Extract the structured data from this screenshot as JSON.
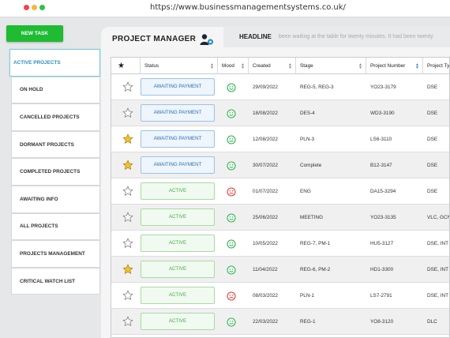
{
  "browser": {
    "url": "https://www.businessmanagementsystems.co.uk/"
  },
  "colors": {
    "close": "#f0454c",
    "minimize": "#f4b73c",
    "maximize": "#2fc24c",
    "accent": "#1fbb33"
  },
  "toolbar": {
    "new_task_label": "NEW TASK"
  },
  "sidebar": {
    "items": [
      {
        "label": "ACTIVE PROJECTS",
        "active": true
      },
      {
        "label": "ON HOLD"
      },
      {
        "label": "CANCELLED PROJECTS"
      },
      {
        "label": "DORMANT PROJECTS"
      },
      {
        "label": "COMPLETED PROJECTS"
      },
      {
        "label": "AWAITING INFO"
      },
      {
        "label": "ALL PROJECTS"
      },
      {
        "label": "PROJECTS MANAGEMENT"
      },
      {
        "label": "CRITICAL WATCH LIST"
      }
    ]
  },
  "panel": {
    "title": "PROJECT MANAGER",
    "user_icon": "user-gear-icon"
  },
  "headline": {
    "label": "HEADLINE",
    "ticker": "been waiting at the table for twenty minutes. It had been twenty"
  },
  "table": {
    "columns": [
      {
        "key": "star",
        "label": "★"
      },
      {
        "key": "status",
        "label": "Status"
      },
      {
        "key": "mood",
        "label": "Mood"
      },
      {
        "key": "created",
        "label": "Created"
      },
      {
        "key": "stage",
        "label": "Stage"
      },
      {
        "key": "number",
        "label": "Project Number"
      },
      {
        "key": "type",
        "label": "Project Ty"
      }
    ],
    "rows": [
      {
        "starred": false,
        "status": "AWAITING PAYMENT",
        "mood": "happy",
        "created": "29/09/2022",
        "stage": "REG-5, REG-3",
        "number": "YO23-3179",
        "type": "DSE"
      },
      {
        "starred": false,
        "status": "AWAITING PAYMENT",
        "mood": "happy",
        "created": "18/08/2022",
        "stage": "DES-4",
        "number": "WD3-3190",
        "type": "DSE"
      },
      {
        "starred": true,
        "status": "AWAITING PAYMENT",
        "mood": "happy",
        "created": "12/08/2022",
        "stage": "PLN-3",
        "number": "LS6-3110",
        "type": "DSE"
      },
      {
        "starred": true,
        "status": "AWAITING PAYMENT",
        "mood": "happy",
        "created": "30/07/2022",
        "stage": "Complete",
        "number": "B12-3147",
        "type": "DSE"
      },
      {
        "starred": false,
        "status": "ACTIVE",
        "mood": "sad",
        "created": "01/07/2022",
        "stage": "ENG",
        "number": "DA15-3294",
        "type": "DSE"
      },
      {
        "starred": false,
        "status": "ACTIVE",
        "mood": "happy",
        "created": "25/06/2022",
        "stage": "MEETING",
        "number": "YO23-3135",
        "type": "VLC, GCN, ..."
      },
      {
        "starred": false,
        "status": "ACTIVE",
        "mood": "happy",
        "created": "10/05/2022",
        "stage": "REG-7, PM-1",
        "number": "HU5-3127",
        "type": "DSE, INT"
      },
      {
        "starred": true,
        "status": "ACTIVE",
        "mood": "happy",
        "created": "11/04/2022",
        "stage": "REG-6, PM-2",
        "number": "HD1-3300",
        "type": "DSE, INT"
      },
      {
        "starred": false,
        "status": "ACTIVE",
        "mood": "sad",
        "created": "08/03/2022",
        "stage": "PLN-1",
        "number": "LS7-2791",
        "type": "DSE, INT"
      },
      {
        "starred": false,
        "status": "ACTIVE",
        "mood": "happy",
        "created": "22/03/2022",
        "stage": "REG-1",
        "number": "YO8-3120",
        "type": "DLC"
      }
    ]
  }
}
